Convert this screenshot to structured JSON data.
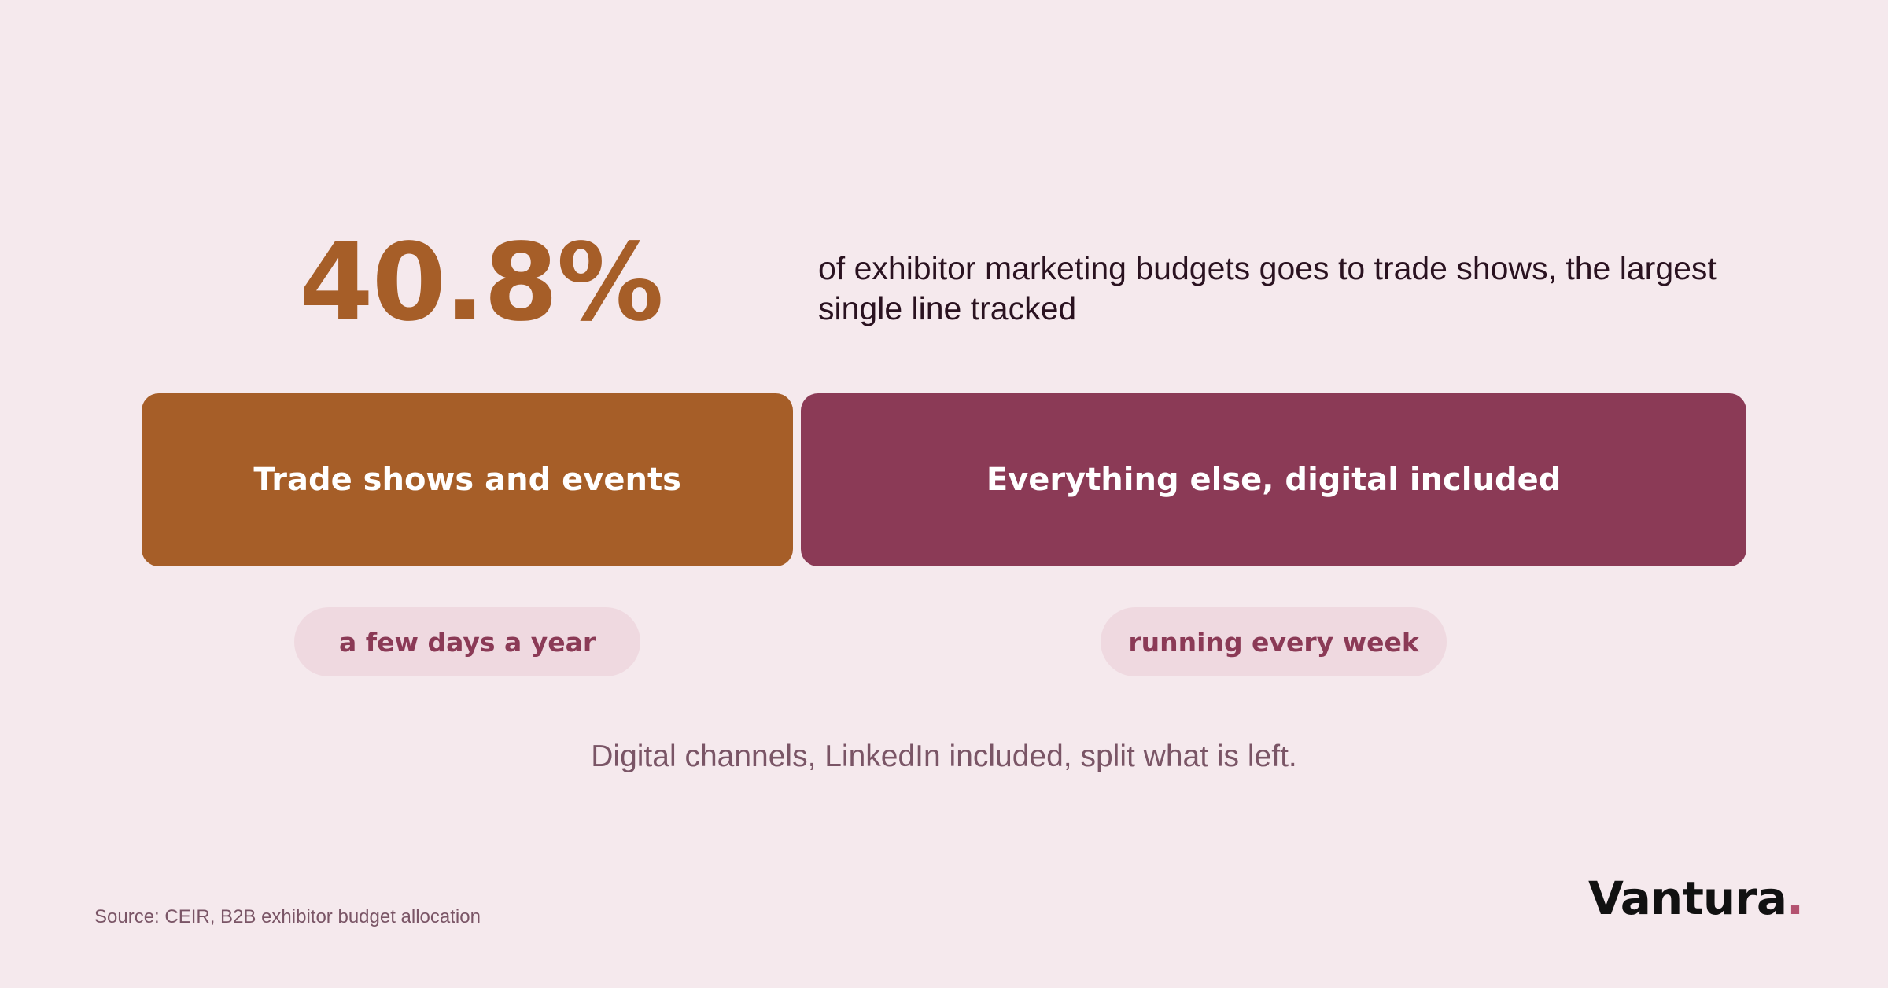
{
  "headline": {
    "value_label": "40.8%",
    "description": "of exhibitor marketing budgets goes to trade shows, the largest single line tracked"
  },
  "chart_data": {
    "type": "bar",
    "orientation": "horizontal-stacked",
    "total": 100,
    "segments": [
      {
        "label": "Trade shows and events",
        "value": 40.8,
        "color": "#a65e28",
        "tag": "a few days a year"
      },
      {
        "label": "Everything else, digital included",
        "value": 59.2,
        "color": "#8b3a56",
        "tag": "running every week"
      }
    ]
  },
  "footnote": "Digital channels, LinkedIn included, split what is left.",
  "source": "Source: CEIR, B2B exhibitor budget allocation",
  "brand": {
    "name": "Vantura",
    "dot": ".",
    "dot_color": "#b45270"
  },
  "colors": {
    "background": "#f5e9ed",
    "pill_background": "#efd9e0",
    "pill_text": "#8b3a56"
  }
}
